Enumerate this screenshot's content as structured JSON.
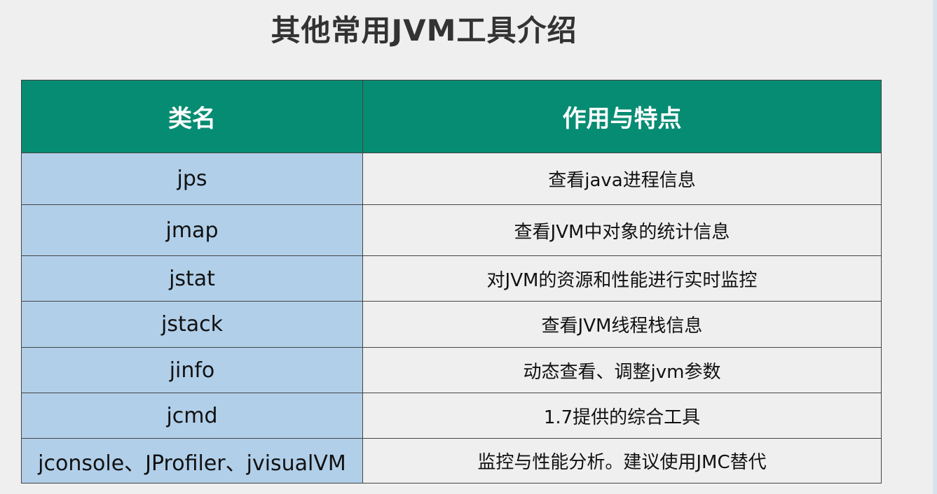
{
  "title": "其他常用JVM工具介绍",
  "table": {
    "headers": [
      "类名",
      "作用与特点"
    ],
    "rows": [
      [
        "jps",
        "查看java进程信息"
      ],
      [
        "jmap",
        "查看JVM中对象的统计信息"
      ],
      [
        "jstat",
        "对JVM的资源和性能进行实时监控"
      ],
      [
        "jstack",
        "查看JVM线程栈信息"
      ],
      [
        "jinfo",
        "动态查看、调整jvm参数"
      ],
      [
        "jcmd",
        "1.7提供的综合工具"
      ],
      [
        "jconsole、JProfiler、jvisualVM",
        "监控与性能分析。建议使用JMC替代"
      ]
    ]
  },
  "colors": {
    "header": "#068c72",
    "name_col": "#b1cfe9",
    "background": "#efefef"
  }
}
